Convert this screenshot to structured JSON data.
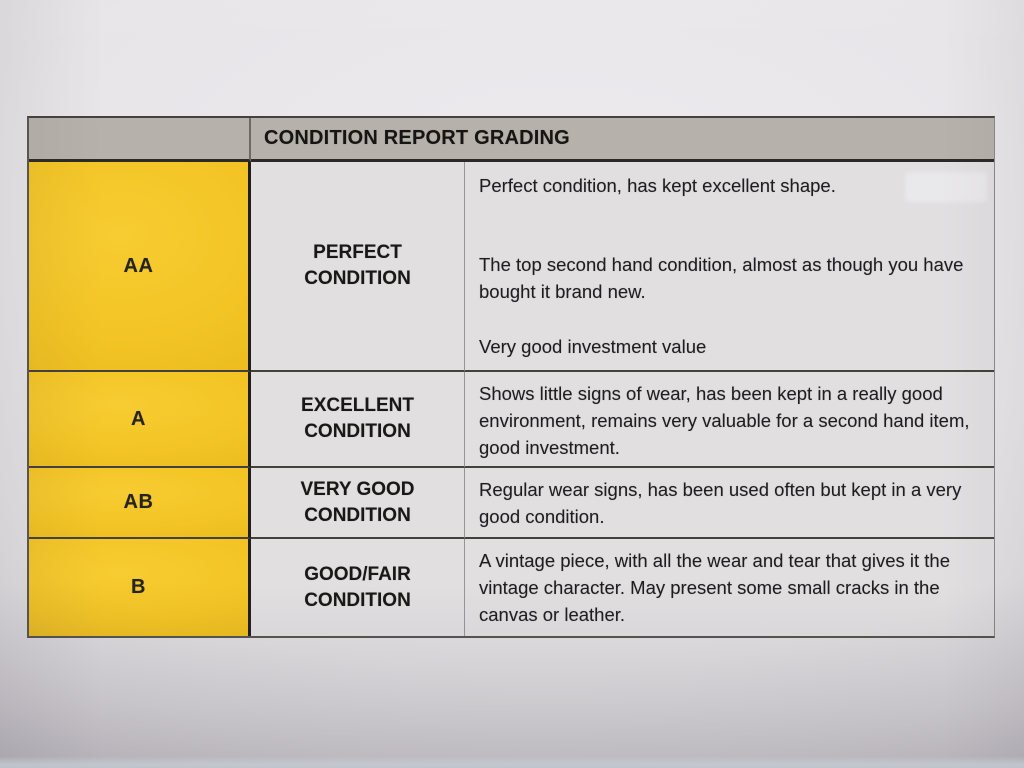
{
  "document": {
    "title": "CONDITION REPORT GRADING",
    "rows": [
      {
        "grade": "AA",
        "condition_lines": [
          "PERFECT",
          "CONDITION"
        ],
        "descriptions": [
          "Perfect condition, has kept excellent shape.",
          "The top second hand condition, almost as though you have bought it brand new.",
          "Very good investment value"
        ]
      },
      {
        "grade": "A",
        "condition_lines": [
          "EXCELLENT",
          "CONDITION"
        ],
        "descriptions": [
          "Shows little signs of wear, has been kept in a really good environment, remains very valuable for a second hand item, good investment."
        ]
      },
      {
        "grade": "AB",
        "condition_lines": [
          "VERY GOOD",
          "CONDITION"
        ],
        "descriptions": [
          "Regular wear signs, has been used often but kept in a very good condition."
        ]
      },
      {
        "grade": "B",
        "condition_lines": [
          "GOOD/FAIR",
          "CONDITION"
        ],
        "descriptions": [
          "A vintage piece, with all the wear and tear that gives it the vintage character. May present some small cracks in the canvas or leather."
        ]
      }
    ],
    "colors": {
      "grade_cell_yellow": "#f3c424",
      "header_gray": "#b6b1aa",
      "cell_gray": "#e1dfe0",
      "border_dark": "#2b2a28"
    }
  }
}
